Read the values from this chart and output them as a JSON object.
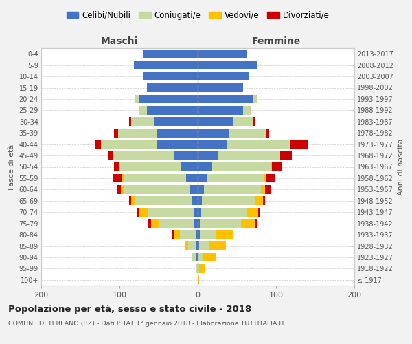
{
  "age_groups": [
    "100+",
    "95-99",
    "90-94",
    "85-89",
    "80-84",
    "75-79",
    "70-74",
    "65-69",
    "60-64",
    "55-59",
    "50-54",
    "45-49",
    "40-44",
    "35-39",
    "30-34",
    "25-29",
    "20-24",
    "15-19",
    "10-14",
    "5-9",
    "0-4"
  ],
  "birth_years": [
    "≤ 1917",
    "1918-1922",
    "1923-1927",
    "1928-1932",
    "1933-1937",
    "1938-1942",
    "1943-1947",
    "1948-1952",
    "1953-1957",
    "1958-1962",
    "1963-1967",
    "1968-1972",
    "1973-1977",
    "1978-1982",
    "1983-1987",
    "1988-1992",
    "1993-1997",
    "1998-2002",
    "2003-2007",
    "2008-2012",
    "2013-2017"
  ],
  "males": {
    "celibe": [
      0,
      0,
      2,
      2,
      3,
      5,
      5,
      8,
      10,
      15,
      22,
      30,
      52,
      52,
      55,
      65,
      75,
      65,
      70,
      82,
      70
    ],
    "coniugato": [
      0,
      2,
      5,
      10,
      20,
      45,
      58,
      72,
      85,
      80,
      78,
      78,
      72,
      50,
      30,
      10,
      5,
      0,
      0,
      0,
      0
    ],
    "vedovo": [
      0,
      0,
      0,
      5,
      8,
      10,
      12,
      5,
      3,
      2,
      0,
      0,
      0,
      0,
      0,
      0,
      0,
      0,
      0,
      0,
      0
    ],
    "divorziato": [
      0,
      0,
      0,
      0,
      2,
      3,
      3,
      3,
      5,
      12,
      7,
      7,
      7,
      5,
      3,
      0,
      0,
      0,
      0,
      0,
      0
    ]
  },
  "females": {
    "celibe": [
      0,
      0,
      1,
      2,
      3,
      3,
      4,
      5,
      8,
      12,
      18,
      25,
      38,
      40,
      45,
      58,
      70,
      58,
      65,
      75,
      62
    ],
    "coniugato": [
      0,
      2,
      5,
      12,
      20,
      52,
      58,
      68,
      73,
      73,
      75,
      80,
      80,
      48,
      25,
      10,
      5,
      0,
      0,
      0,
      0
    ],
    "vedovo": [
      2,
      8,
      18,
      22,
      22,
      18,
      15,
      10,
      5,
      2,
      2,
      0,
      0,
      0,
      0,
      0,
      0,
      0,
      0,
      0,
      0
    ],
    "divorziato": [
      0,
      0,
      0,
      0,
      0,
      3,
      3,
      3,
      7,
      12,
      12,
      15,
      22,
      3,
      3,
      0,
      0,
      0,
      0,
      0,
      0
    ]
  },
  "color_celibe": "#4472c4",
  "color_coniugato": "#c5d9a0",
  "color_vedovo": "#ffc000",
  "color_divorziato": "#cc0000",
  "xlabel_left": "Maschi",
  "xlabel_right": "Femmine",
  "ylabel_left": "Fasce di età",
  "ylabel_right": "Anni di nascita",
  "title": "Popolazione per età, sesso e stato civile - 2018",
  "subtitle": "COMUNE DI TERLANO (BZ) - Dati ISTAT 1° gennaio 2018 - Elaborazione TUTTITALIA.IT",
  "legend_labels": [
    "Celibi/Nubili",
    "Coniugati/e",
    "Vedovi/e",
    "Divorziati/e"
  ],
  "xlim": 200,
  "bg_color": "#f2f2f2",
  "plot_bg": "#ffffff"
}
